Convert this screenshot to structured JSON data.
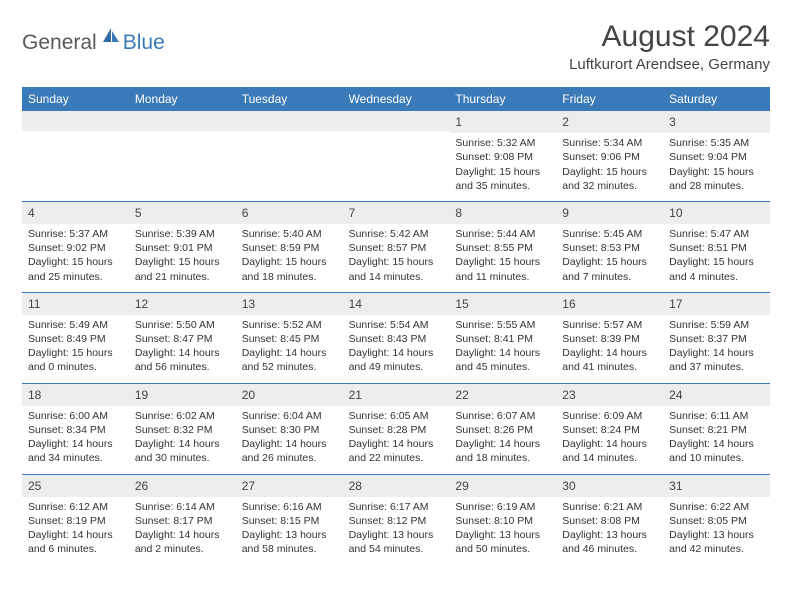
{
  "logo": {
    "text1": "General",
    "text2": "Blue"
  },
  "title": "August 2024",
  "location": "Luftkurort Arendsee, Germany",
  "colors": {
    "header_bg": "#3a7ab8",
    "header_text": "#ffffff",
    "daynum_bg": "#ededed",
    "text": "#333333",
    "divider": "#3a7ab8",
    "background": "#ffffff"
  },
  "typography": {
    "title_fontsize": 30,
    "location_fontsize": 15,
    "dayhead_fontsize": 12,
    "cell_fontsize": 10.5
  },
  "dayNames": [
    "Sunday",
    "Monday",
    "Tuesday",
    "Wednesday",
    "Thursday",
    "Friday",
    "Saturday"
  ],
  "weeks": [
    [
      null,
      null,
      null,
      null,
      {
        "n": "1",
        "sr": "Sunrise: 5:32 AM",
        "ss": "Sunset: 9:08 PM",
        "d1": "Daylight: 15 hours",
        "d2": "and 35 minutes."
      },
      {
        "n": "2",
        "sr": "Sunrise: 5:34 AM",
        "ss": "Sunset: 9:06 PM",
        "d1": "Daylight: 15 hours",
        "d2": "and 32 minutes."
      },
      {
        "n": "3",
        "sr": "Sunrise: 5:35 AM",
        "ss": "Sunset: 9:04 PM",
        "d1": "Daylight: 15 hours",
        "d2": "and 28 minutes."
      }
    ],
    [
      {
        "n": "4",
        "sr": "Sunrise: 5:37 AM",
        "ss": "Sunset: 9:02 PM",
        "d1": "Daylight: 15 hours",
        "d2": "and 25 minutes."
      },
      {
        "n": "5",
        "sr": "Sunrise: 5:39 AM",
        "ss": "Sunset: 9:01 PM",
        "d1": "Daylight: 15 hours",
        "d2": "and 21 minutes."
      },
      {
        "n": "6",
        "sr": "Sunrise: 5:40 AM",
        "ss": "Sunset: 8:59 PM",
        "d1": "Daylight: 15 hours",
        "d2": "and 18 minutes."
      },
      {
        "n": "7",
        "sr": "Sunrise: 5:42 AM",
        "ss": "Sunset: 8:57 PM",
        "d1": "Daylight: 15 hours",
        "d2": "and 14 minutes."
      },
      {
        "n": "8",
        "sr": "Sunrise: 5:44 AM",
        "ss": "Sunset: 8:55 PM",
        "d1": "Daylight: 15 hours",
        "d2": "and 11 minutes."
      },
      {
        "n": "9",
        "sr": "Sunrise: 5:45 AM",
        "ss": "Sunset: 8:53 PM",
        "d1": "Daylight: 15 hours",
        "d2": "and 7 minutes."
      },
      {
        "n": "10",
        "sr": "Sunrise: 5:47 AM",
        "ss": "Sunset: 8:51 PM",
        "d1": "Daylight: 15 hours",
        "d2": "and 4 minutes."
      }
    ],
    [
      {
        "n": "11",
        "sr": "Sunrise: 5:49 AM",
        "ss": "Sunset: 8:49 PM",
        "d1": "Daylight: 15 hours",
        "d2": "and 0 minutes."
      },
      {
        "n": "12",
        "sr": "Sunrise: 5:50 AM",
        "ss": "Sunset: 8:47 PM",
        "d1": "Daylight: 14 hours",
        "d2": "and 56 minutes."
      },
      {
        "n": "13",
        "sr": "Sunrise: 5:52 AM",
        "ss": "Sunset: 8:45 PM",
        "d1": "Daylight: 14 hours",
        "d2": "and 52 minutes."
      },
      {
        "n": "14",
        "sr": "Sunrise: 5:54 AM",
        "ss": "Sunset: 8:43 PM",
        "d1": "Daylight: 14 hours",
        "d2": "and 49 minutes."
      },
      {
        "n": "15",
        "sr": "Sunrise: 5:55 AM",
        "ss": "Sunset: 8:41 PM",
        "d1": "Daylight: 14 hours",
        "d2": "and 45 minutes."
      },
      {
        "n": "16",
        "sr": "Sunrise: 5:57 AM",
        "ss": "Sunset: 8:39 PM",
        "d1": "Daylight: 14 hours",
        "d2": "and 41 minutes."
      },
      {
        "n": "17",
        "sr": "Sunrise: 5:59 AM",
        "ss": "Sunset: 8:37 PM",
        "d1": "Daylight: 14 hours",
        "d2": "and 37 minutes."
      }
    ],
    [
      {
        "n": "18",
        "sr": "Sunrise: 6:00 AM",
        "ss": "Sunset: 8:34 PM",
        "d1": "Daylight: 14 hours",
        "d2": "and 34 minutes."
      },
      {
        "n": "19",
        "sr": "Sunrise: 6:02 AM",
        "ss": "Sunset: 8:32 PM",
        "d1": "Daylight: 14 hours",
        "d2": "and 30 minutes."
      },
      {
        "n": "20",
        "sr": "Sunrise: 6:04 AM",
        "ss": "Sunset: 8:30 PM",
        "d1": "Daylight: 14 hours",
        "d2": "and 26 minutes."
      },
      {
        "n": "21",
        "sr": "Sunrise: 6:05 AM",
        "ss": "Sunset: 8:28 PM",
        "d1": "Daylight: 14 hours",
        "d2": "and 22 minutes."
      },
      {
        "n": "22",
        "sr": "Sunrise: 6:07 AM",
        "ss": "Sunset: 8:26 PM",
        "d1": "Daylight: 14 hours",
        "d2": "and 18 minutes."
      },
      {
        "n": "23",
        "sr": "Sunrise: 6:09 AM",
        "ss": "Sunset: 8:24 PM",
        "d1": "Daylight: 14 hours",
        "d2": "and 14 minutes."
      },
      {
        "n": "24",
        "sr": "Sunrise: 6:11 AM",
        "ss": "Sunset: 8:21 PM",
        "d1": "Daylight: 14 hours",
        "d2": "and 10 minutes."
      }
    ],
    [
      {
        "n": "25",
        "sr": "Sunrise: 6:12 AM",
        "ss": "Sunset: 8:19 PM",
        "d1": "Daylight: 14 hours",
        "d2": "and 6 minutes."
      },
      {
        "n": "26",
        "sr": "Sunrise: 6:14 AM",
        "ss": "Sunset: 8:17 PM",
        "d1": "Daylight: 14 hours",
        "d2": "and 2 minutes."
      },
      {
        "n": "27",
        "sr": "Sunrise: 6:16 AM",
        "ss": "Sunset: 8:15 PM",
        "d1": "Daylight: 13 hours",
        "d2": "and 58 minutes."
      },
      {
        "n": "28",
        "sr": "Sunrise: 6:17 AM",
        "ss": "Sunset: 8:12 PM",
        "d1": "Daylight: 13 hours",
        "d2": "and 54 minutes."
      },
      {
        "n": "29",
        "sr": "Sunrise: 6:19 AM",
        "ss": "Sunset: 8:10 PM",
        "d1": "Daylight: 13 hours",
        "d2": "and 50 minutes."
      },
      {
        "n": "30",
        "sr": "Sunrise: 6:21 AM",
        "ss": "Sunset: 8:08 PM",
        "d1": "Daylight: 13 hours",
        "d2": "and 46 minutes."
      },
      {
        "n": "31",
        "sr": "Sunrise: 6:22 AM",
        "ss": "Sunset: 8:05 PM",
        "d1": "Daylight: 13 hours",
        "d2": "and 42 minutes."
      }
    ]
  ]
}
